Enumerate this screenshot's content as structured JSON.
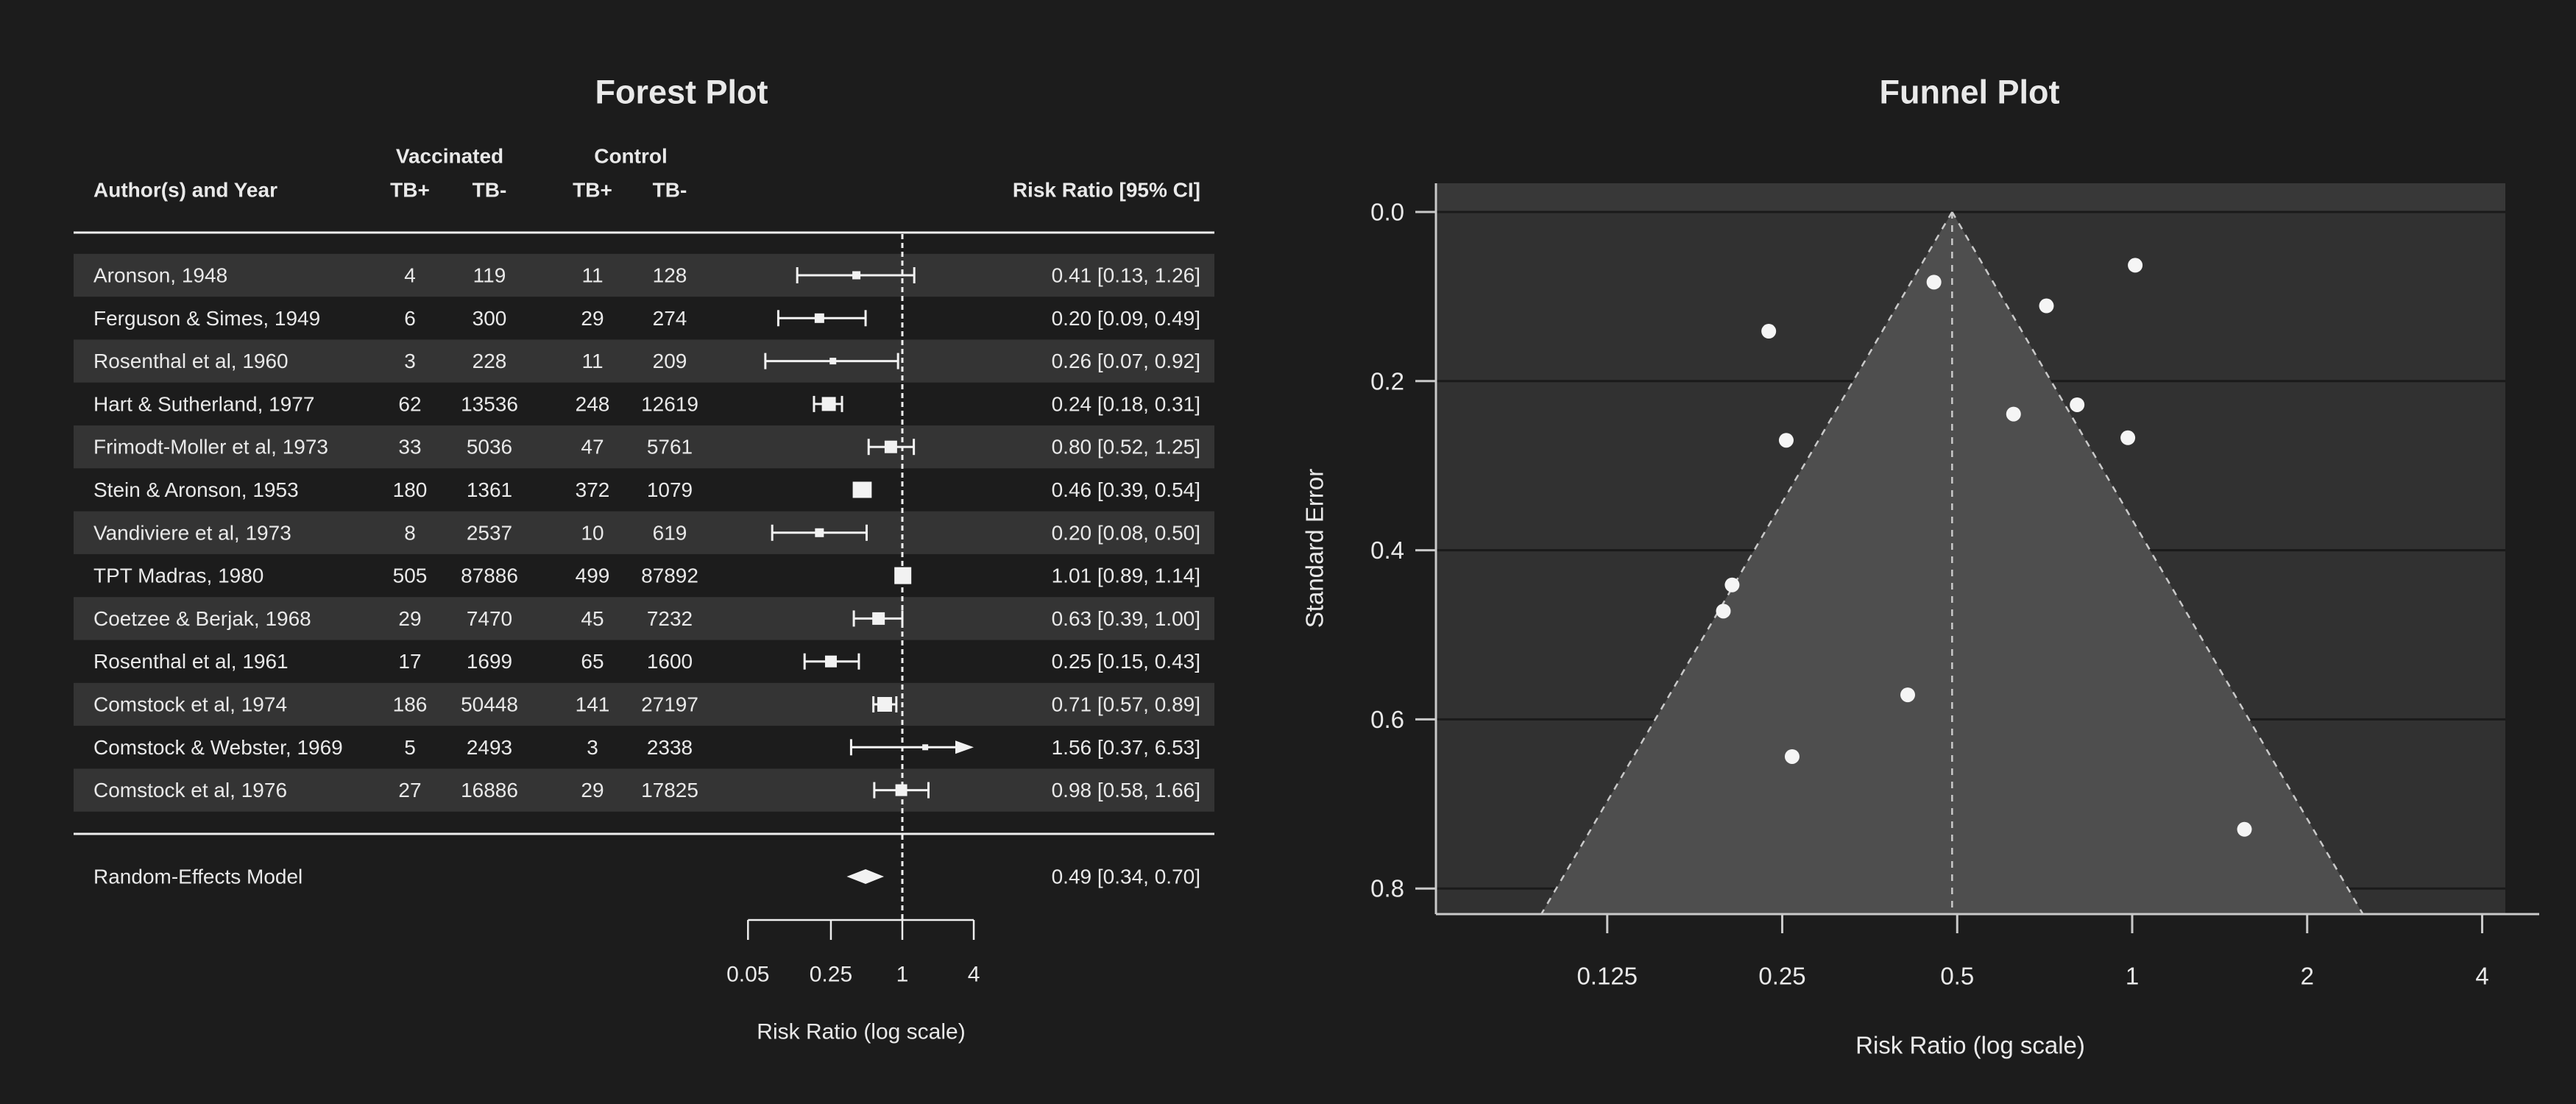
{
  "colors": {
    "background": "#1c1c1c",
    "text": "#e9e9e9",
    "row_stripe": "#343434",
    "rule": "#eeeeee",
    "marker": "#f2f2f2",
    "ref_dash": "#f0f0f0",
    "funnel_panel": "#313131",
    "funnel_top_band": "#383838",
    "funnel_region": "#4e4e4e",
    "funnel_grid": "#1a1a1a",
    "funnel_axis": "#c9c9c9",
    "funnel_dash": "#c9c9c9",
    "point_fill": "#f5f5f5"
  },
  "chart_data": [
    {
      "type": "forest",
      "title": "Forest Plot",
      "header": {
        "author": "Author(s) and Year",
        "group_vaccinated": "Vaccinated",
        "group_control": "Control",
        "sub": [
          "TB+",
          "TB-",
          "TB+",
          "TB-"
        ],
        "effect": "Risk Ratio [95% CI]"
      },
      "studies": [
        {
          "author": "Aronson, 1948",
          "v_pos": "4",
          "v_neg": "119",
          "c_pos": "11",
          "c_neg": "128",
          "rr": 0.41,
          "ci_low": 0.13,
          "ci_high": 1.26,
          "label": "0.41 [0.13, 1.26]",
          "square": 11,
          "arrow": false
        },
        {
          "author": "Ferguson & Simes, 1949",
          "v_pos": "6",
          "v_neg": "300",
          "c_pos": "29",
          "c_neg": "274",
          "rr": 0.2,
          "ci_low": 0.09,
          "ci_high": 0.49,
          "label": "0.20 [0.09, 0.49]",
          "square": 13,
          "arrow": false
        },
        {
          "author": "Rosenthal et al, 1960",
          "v_pos": "3",
          "v_neg": "228",
          "c_pos": "11",
          "c_neg": "209",
          "rr": 0.26,
          "ci_low": 0.07,
          "ci_high": 0.92,
          "label": "0.26 [0.07, 0.92]",
          "square": 9,
          "arrow": false
        },
        {
          "author": "Hart & Sutherland, 1977",
          "v_pos": "62",
          "v_neg": "13536",
          "c_pos": "248",
          "c_neg": "12619",
          "rr": 0.24,
          "ci_low": 0.18,
          "ci_high": 0.31,
          "label": "0.24 [0.18, 0.31]",
          "square": 19,
          "arrow": false
        },
        {
          "author": "Frimodt-Moller et al, 1973",
          "v_pos": "33",
          "v_neg": "5036",
          "c_pos": "47",
          "c_neg": "5761",
          "rr": 0.8,
          "ci_low": 0.52,
          "ci_high": 1.25,
          "label": "0.80 [0.52, 1.25]",
          "square": 17,
          "arrow": false
        },
        {
          "author": "Stein & Aronson, 1953",
          "v_pos": "180",
          "v_neg": "1361",
          "c_pos": "372",
          "c_neg": "1079",
          "rr": 0.46,
          "ci_low": 0.39,
          "ci_high": 0.54,
          "label": "0.46 [0.39, 0.54]",
          "square": 22,
          "arrow": false
        },
        {
          "author": "Vandiviere et al, 1973",
          "v_pos": "8",
          "v_neg": "2537",
          "c_pos": "10",
          "c_neg": "619",
          "rr": 0.2,
          "ci_low": 0.08,
          "ci_high": 0.5,
          "label": "0.20 [0.08, 0.50]",
          "square": 12,
          "arrow": false
        },
        {
          "author": "TPT Madras, 1980",
          "v_pos": "505",
          "v_neg": "87886",
          "c_pos": "499",
          "c_neg": "87892",
          "rr": 1.01,
          "ci_low": 0.89,
          "ci_high": 1.14,
          "label": "1.01 [0.89, 1.14]",
          "square": 23,
          "arrow": false
        },
        {
          "author": "Coetzee & Berjak, 1968",
          "v_pos": "29",
          "v_neg": "7470",
          "c_pos": "45",
          "c_neg": "7232",
          "rr": 0.63,
          "ci_low": 0.39,
          "ci_high": 1.0,
          "label": "0.63 [0.39, 1.00]",
          "square": 17,
          "arrow": false
        },
        {
          "author": "Rosenthal et al, 1961",
          "v_pos": "17",
          "v_neg": "1699",
          "c_pos": "65",
          "c_neg": "1600",
          "rr": 0.25,
          "ci_low": 0.15,
          "ci_high": 0.43,
          "label": "0.25 [0.15, 0.43]",
          "square": 16,
          "arrow": false
        },
        {
          "author": "Comstock et al, 1974",
          "v_pos": "186",
          "v_neg": "50448",
          "c_pos": "141",
          "c_neg": "27197",
          "rr": 0.71,
          "ci_low": 0.57,
          "ci_high": 0.89,
          "label": "0.71 [0.57, 0.89]",
          "square": 20,
          "arrow": false
        },
        {
          "author": "Comstock & Webster, 1969",
          "v_pos": "5",
          "v_neg": "2493",
          "c_pos": "3",
          "c_neg": "2338",
          "rr": 1.56,
          "ci_low": 0.37,
          "ci_high": 6.53,
          "label": "1.56 [0.37, 6.53]",
          "square": 8,
          "arrow": true
        },
        {
          "author": "Comstock et al, 1976",
          "v_pos": "27",
          "v_neg": "16886",
          "c_pos": "29",
          "c_neg": "17825",
          "rr": 0.98,
          "ci_low": 0.58,
          "ci_high": 1.66,
          "label": "0.98 [0.58, 1.66]",
          "square": 16,
          "arrow": false
        }
      ],
      "summary": {
        "label": "Random-Effects Model",
        "rr": 0.49,
        "ci_low": 0.34,
        "ci_high": 0.7,
        "label_ci": "0.49 [0.34, 0.70]"
      },
      "xaxis": {
        "scale": "log",
        "ticks": [
          0.05,
          0.25,
          1,
          4
        ],
        "tick_labels": [
          "0.05",
          "0.25",
          "1",
          "4"
        ],
        "title": "Risk Ratio (log scale)",
        "ref_line": 1
      }
    },
    {
      "type": "funnel-scatter",
      "title": "Funnel Plot",
      "xlabel": "Risk Ratio (log scale)",
      "ylabel": "Standard Error",
      "x_scale": "log",
      "x_ticks": [
        0.125,
        0.25,
        0.5,
        1,
        2,
        4
      ],
      "x_tick_labels": [
        "0.125",
        "0.25",
        "0.5",
        "1",
        "2",
        "4"
      ],
      "y_ticks": [
        0.0,
        0.2,
        0.4,
        0.6,
        0.8
      ],
      "y_tick_labels": [
        "0.0",
        "0.2",
        "0.4",
        "0.6",
        "0.8"
      ],
      "xlim": [
        0.063,
        4.38
      ],
      "ylim": [
        0,
        0.83
      ],
      "y_inverted": true,
      "grid": "horizontal",
      "estimate": 0.49,
      "ci_z": 1.96,
      "points": [
        {
          "study": "Aronson, 1948",
          "rr": 0.411,
          "se": 0.571
        },
        {
          "study": "Ferguson & Simes, 1949",
          "rr": 0.205,
          "se": 0.441
        },
        {
          "study": "Rosenthal et al, 1960",
          "rr": 0.26,
          "se": 0.644
        },
        {
          "study": "Hart & Sutherland, 1977",
          "rr": 0.237,
          "se": 0.141
        },
        {
          "study": "Frimodt-Moller et al, 1973",
          "rr": 0.804,
          "se": 0.228
        },
        {
          "study": "Stein & Aronson, 1953",
          "rr": 0.456,
          "se": 0.083
        },
        {
          "study": "Vandiviere et al, 1973",
          "rr": 0.198,
          "se": 0.472
        },
        {
          "study": "TPT Madras, 1980",
          "rr": 1.012,
          "se": 0.063
        },
        {
          "study": "Coetzee & Berjak, 1968",
          "rr": 0.625,
          "se": 0.239
        },
        {
          "study": "Rosenthal et al, 1961",
          "rr": 0.254,
          "se": 0.27
        },
        {
          "study": "Comstock et al, 1974",
          "rr": 0.712,
          "se": 0.111
        },
        {
          "study": "Comstock & Webster, 1969",
          "rr": 1.56,
          "se": 0.73
        },
        {
          "study": "Comstock et al, 1976",
          "rr": 0.983,
          "se": 0.267
        }
      ]
    }
  ]
}
